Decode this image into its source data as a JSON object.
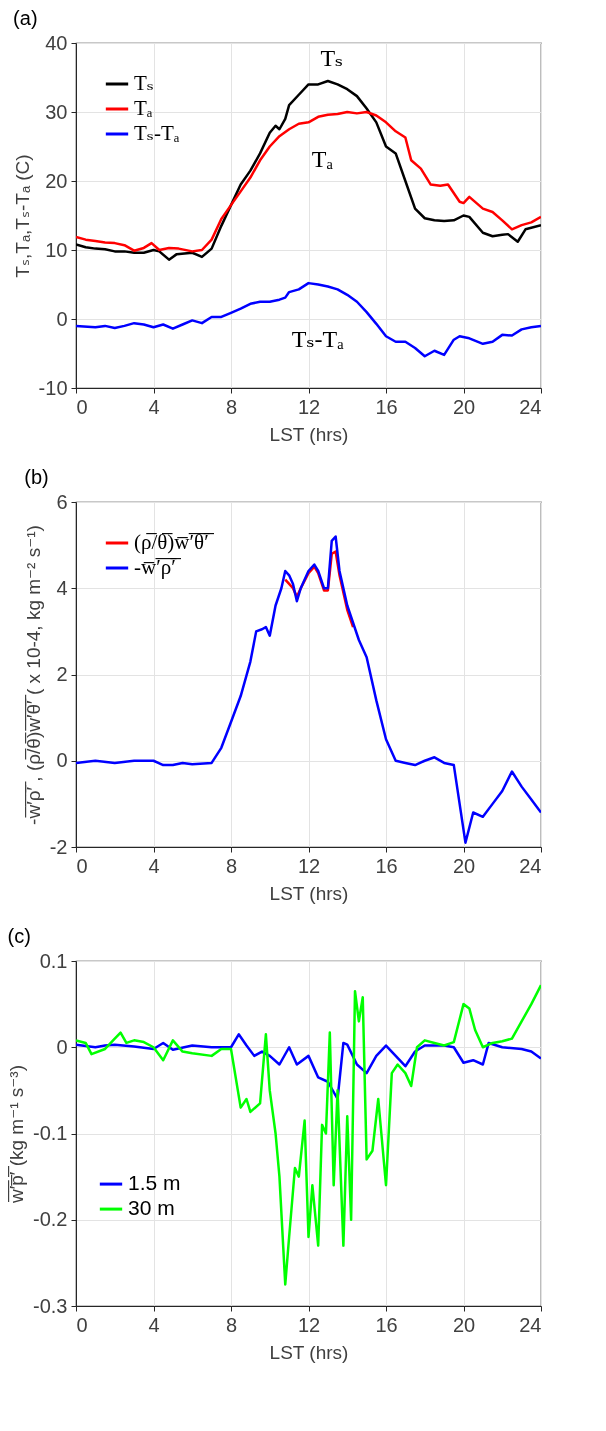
{
  "chart_data": [
    {
      "type": "line",
      "title": "(a)",
      "xlabel": "LST (hrs)",
      "ylabel": "Tₛ,Tₐ,Tₛ-Tₐ (C)",
      "xlim": [
        0,
        24
      ],
      "xticks": [
        0,
        4,
        8,
        12,
        16,
        20,
        24
      ],
      "ylim": [
        -10,
        40
      ],
      "yticks": [
        -10,
        0,
        10,
        20,
        30,
        40
      ],
      "grid": true,
      "legend": "top left",
      "series": [
        {
          "name": "Tₛ",
          "color": "#000000",
          "x": [
            0,
            0.5,
            1,
            1.5,
            2,
            2.5,
            3,
            3.5,
            4,
            4.3,
            4.8,
            5.2,
            5.6,
            6,
            6.5,
            7,
            7.5,
            8,
            8.5,
            9,
            9.5,
            10,
            10.3,
            10.5,
            10.8,
            11,
            11.5,
            12,
            12.5,
            13,
            13.5,
            14,
            14.5,
            15,
            15.5,
            16,
            16.5,
            17,
            17.5,
            18,
            18.5,
            19,
            19.5,
            20,
            20.3,
            21,
            21.5,
            22,
            22.3,
            22.8,
            23.2,
            24
          ],
          "values": [
            10.8,
            10.4,
            10.2,
            10.1,
            9.8,
            9.8,
            9.6,
            9.6,
            10.0,
            9.8,
            8.6,
            9.4,
            9.5,
            9.6,
            9.0,
            10.2,
            13.5,
            16.5,
            19.5,
            21.5,
            24,
            27,
            28,
            27.5,
            29,
            31,
            32.5,
            34,
            34,
            34.5,
            34,
            33.3,
            32.3,
            30.5,
            28.5,
            25,
            24,
            20,
            16,
            14.6,
            14.3,
            14.2,
            14.3,
            15,
            14.8,
            12.5,
            12,
            12.2,
            12.3,
            11.2,
            13,
            13.6
          ]
        },
        {
          "name": "Tₐ",
          "color": "#ff0000",
          "x": [
            0,
            0.5,
            1,
            1.5,
            2,
            2.5,
            3,
            3.5,
            3.9,
            4.3,
            4.8,
            5.3,
            6,
            6.5,
            7,
            7.5,
            8,
            8.5,
            9,
            9.5,
            10,
            10.5,
            11,
            11.5,
            12,
            12.5,
            13,
            13.5,
            14,
            14.5,
            15,
            15.5,
            16,
            16.5,
            17,
            17.3,
            17.8,
            18.3,
            18.8,
            19.2,
            19.8,
            20,
            20.3,
            21,
            21.5,
            22,
            22.5,
            23,
            23.5,
            24
          ],
          "values": [
            11.9,
            11.5,
            11.3,
            11.1,
            11,
            10.7,
            9.9,
            10.3,
            11,
            10,
            10.3,
            10.2,
            9.8,
            10,
            11.5,
            14.5,
            16.5,
            18.5,
            20.5,
            23,
            25,
            26.5,
            27.5,
            28.3,
            28.5,
            29.3,
            29.6,
            29.7,
            30,
            29.8,
            30,
            29.5,
            28.5,
            27.2,
            26.3,
            23,
            21.8,
            19.5,
            19.3,
            19.5,
            17,
            16.8,
            17.7,
            16,
            15.5,
            14.3,
            13,
            13.6,
            14,
            14.8
          ]
        },
        {
          "name": "Tₛ-Tₐ",
          "color": "#0000ff",
          "x": [
            0,
            1,
            1.5,
            2,
            2.5,
            3,
            3.5,
            4,
            4.5,
            5,
            5.5,
            6,
            6.5,
            7,
            7.5,
            8,
            8.5,
            9,
            9.5,
            10,
            10.5,
            10.8,
            11,
            11.5,
            12,
            12.5,
            13,
            13.5,
            14,
            14.5,
            15,
            15.5,
            16,
            16.5,
            17,
            17.5,
            18,
            18.5,
            19,
            19.5,
            19.8,
            20.3,
            21,
            21.5,
            22,
            22.5,
            23,
            23.5,
            24
          ],
          "values": [
            -1,
            -1.2,
            -1,
            -1.3,
            -1,
            -0.6,
            -0.8,
            -1.2,
            -0.8,
            -1.4,
            -0.8,
            -0.2,
            -0.6,
            0.3,
            0.3,
            0.9,
            1.5,
            2.2,
            2.5,
            2.5,
            2.8,
            3.1,
            3.9,
            4.3,
            5.2,
            5.0,
            4.7,
            4.3,
            3.5,
            2.5,
            1.0,
            -0.7,
            -2.5,
            -3.3,
            -3.3,
            -4.2,
            -5.4,
            -4.6,
            -5.2,
            -3.0,
            -2.5,
            -2.8,
            -3.6,
            -3.3,
            -2.3,
            -2.4,
            -1.5,
            -1.2,
            -1.0
          ]
        }
      ],
      "annotations": [
        "Tₛ",
        "Tₐ",
        "Tₛ-Tₐ"
      ]
    },
    {
      "type": "line",
      "title": "(b)",
      "xlabel": "LST (hrs)",
      "ylabel": "-w̅′̅ρ̅′̅ , (ρ̅/θ̅)w̅′̅θ̅′̅ ( x 10-4, kg m⁻² s⁻¹)",
      "xlim": [
        0,
        24
      ],
      "xticks": [
        0,
        4,
        8,
        12,
        16,
        20,
        24
      ],
      "ylim": [
        -2,
        6
      ],
      "yticks": [
        -2,
        0,
        2,
        4,
        6
      ],
      "grid": true,
      "legend": "top left",
      "series": [
        {
          "name": "(ρ̅/θ̅)w̅′̅θ̅′̅",
          "color": "#ff0000",
          "x": [
            10.8,
            11,
            11.2,
            11.4,
            11.6,
            12,
            12.3,
            12.5,
            12.8,
            13,
            13.2,
            13.4,
            13.6,
            14,
            14.3
          ],
          "values": [
            4.2,
            4.1,
            4.0,
            3.8,
            4.0,
            4.35,
            4.5,
            4.35,
            3.95,
            3.95,
            4.8,
            4.85,
            4.3,
            3.5,
            3.1
          ]
        },
        {
          "name": "-w̅′̅ρ̅′̅",
          "color": "#0000ff",
          "x": [
            0,
            1,
            2,
            3,
            4,
            4.5,
            5,
            5.5,
            6,
            7,
            7.5,
            8,
            8.5,
            9,
            9.3,
            9.6,
            9.8,
            10,
            10.3,
            10.6,
            10.8,
            11,
            11.2,
            11.4,
            11.6,
            12,
            12.3,
            12.5,
            12.8,
            13,
            13.2,
            13.4,
            13.6,
            14,
            14.3,
            14.6,
            15,
            15.5,
            16,
            16.5,
            17,
            17.5,
            18,
            18.5,
            19,
            19.5,
            19.8,
            20.1,
            20.5,
            21,
            21.5,
            22,
            22.5,
            23,
            23.5,
            24
          ],
          "values": [
            -0.05,
            0,
            -0.05,
            0,
            0,
            -0.1,
            -0.1,
            -0.05,
            -0.08,
            -0.05,
            0.3,
            0.9,
            1.5,
            2.3,
            3.0,
            3.05,
            3.1,
            2.9,
            3.6,
            4.0,
            4.4,
            4.3,
            4.1,
            3.7,
            4.0,
            4.4,
            4.55,
            4.4,
            4.0,
            4.0,
            5.1,
            5.2,
            4.4,
            3.6,
            3.2,
            2.8,
            2.4,
            1.4,
            0.5,
            0,
            -0.05,
            -0.1,
            0,
            0.08,
            -0.05,
            -0.1,
            -1.0,
            -1.9,
            -1.2,
            -1.3,
            -1.0,
            -0.7,
            -0.25,
            -0.6,
            -0.9,
            -1.2
          ]
        }
      ]
    },
    {
      "type": "line",
      "title": "(c)",
      "xlabel": "LST (hrs)",
      "ylabel": "w̅′̅p̅′̅ (kg m⁻¹ s⁻³)",
      "xlim": [
        0,
        24
      ],
      "xticks": [
        0,
        4,
        8,
        12,
        16,
        20,
        24
      ],
      "ylim": [
        -0.3,
        0.1
      ],
      "yticks": [
        -0.3,
        -0.2,
        -0.1,
        0,
        0.1
      ],
      "grid": true,
      "legend": "left",
      "series": [
        {
          "name": "1.5 m",
          "color": "#0000ff",
          "x": [
            0,
            1,
            1.5,
            2,
            3,
            4,
            4.5,
            5,
            6,
            7,
            8,
            8.4,
            8.8,
            9.2,
            9.6,
            10,
            10.5,
            11,
            11.4,
            12,
            12.5,
            13,
            13.5,
            13.8,
            14,
            14.5,
            15,
            15.5,
            16,
            16.5,
            17,
            17.5,
            18,
            19,
            19.5,
            20,
            20.5,
            21,
            21.3,
            22,
            23,
            23.5,
            24
          ],
          "values": [
            0.003,
            0,
            0.002,
            0.003,
            0.001,
            -0.002,
            0.005,
            -0.003,
            0.002,
            0,
            0,
            0.015,
            0.002,
            -0.01,
            -0.005,
            -0.01,
            -0.02,
            0,
            -0.02,
            -0.01,
            -0.035,
            -0.04,
            -0.06,
            0.005,
            0.003,
            -0.02,
            -0.03,
            -0.01,
            0.002,
            -0.01,
            -0.022,
            -0.005,
            0.002,
            0.002,
            0,
            -0.018,
            -0.015,
            -0.02,
            0.005,
            0,
            -0.002,
            -0.005,
            -0.013
          ]
        },
        {
          "name": "30 m",
          "color": "#00ff00",
          "x": [
            0,
            0.5,
            0.8,
            1.5,
            2,
            2.3,
            2.6,
            3,
            3.5,
            4,
            4.5,
            5,
            5.5,
            6,
            7,
            7.5,
            8,
            8.5,
            8.8,
            9,
            9.5,
            9.8,
            10,
            10.3,
            10.5,
            10.8,
            11,
            11.3,
            11.5,
            11.8,
            12,
            12.2,
            12.5,
            12.7,
            12.9,
            13.1,
            13.3,
            13.5,
            13.8,
            14,
            14.2,
            14.4,
            14.6,
            14.8,
            15,
            15.3,
            15.6,
            16,
            16.3,
            16.6,
            17,
            17.3,
            17.6,
            18,
            18.5,
            19,
            19.5,
            20,
            20.3,
            20.6,
            21,
            21.5,
            22,
            22.5,
            23,
            23.5,
            24
          ],
          "values": [
            0.008,
            0.005,
            -0.008,
            -0.002,
            0.01,
            0.017,
            0.005,
            0.008,
            0.006,
            0,
            -0.015,
            0.008,
            -0.005,
            -0.007,
            -0.01,
            -0.002,
            -0.002,
            -0.07,
            -0.06,
            -0.075,
            -0.065,
            0.015,
            -0.05,
            -0.1,
            -0.15,
            -0.275,
            -0.22,
            -0.14,
            -0.15,
            -0.085,
            -0.22,
            -0.16,
            -0.23,
            -0.09,
            -0.1,
            0.017,
            -0.16,
            -0.05,
            -0.23,
            -0.08,
            -0.2,
            0.065,
            0.03,
            0.058,
            -0.13,
            -0.12,
            -0.06,
            -0.16,
            -0.03,
            -0.02,
            -0.03,
            -0.045,
            0,
            0.008,
            0.005,
            0.002,
            0.006,
            0.05,
            0.045,
            0.02,
            0,
            0.005,
            0.007,
            0.01,
            0.03,
            0.05,
            0.072
          ]
        }
      ]
    }
  ]
}
